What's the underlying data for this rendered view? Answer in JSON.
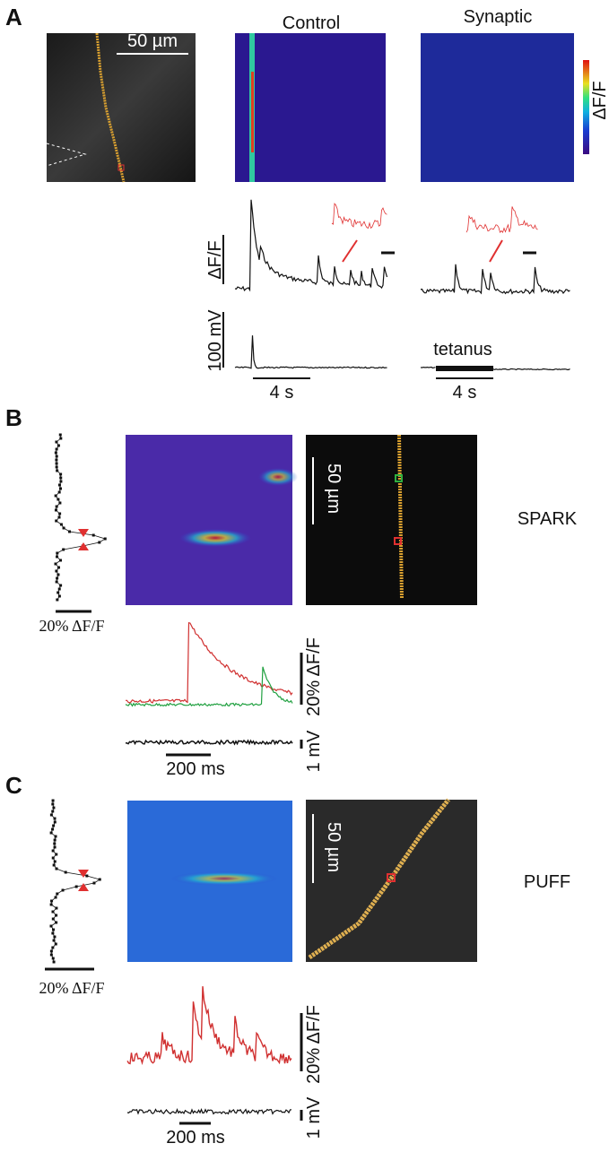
{
  "panels": [
    {
      "label": "A",
      "titles": [
        "Control",
        "Synaptic"
      ],
      "scale_bar": "50 µm",
      "colorbar_label": "ΔF/F",
      "trace_label": "ΔF/F",
      "voltage_label": "100 mV",
      "time_bars": [
        "4 s",
        "4 s"
      ],
      "stimulus": "tetanus"
    },
    {
      "label": "B",
      "event": "SPARK",
      "profile_scale": "20% ΔF/F",
      "scale_bar": "50 µm",
      "trace_label": "20% ΔF/F",
      "voltage_label": "1 mV",
      "time_bar": "200 ms"
    },
    {
      "label": "C",
      "event": "PUFF",
      "profile_scale": "20% ΔF/F",
      "scale_bar": "50 µm",
      "trace_label": "20% ΔF/F",
      "voltage_label": "1 mV",
      "time_bar": "200 ms"
    }
  ]
}
